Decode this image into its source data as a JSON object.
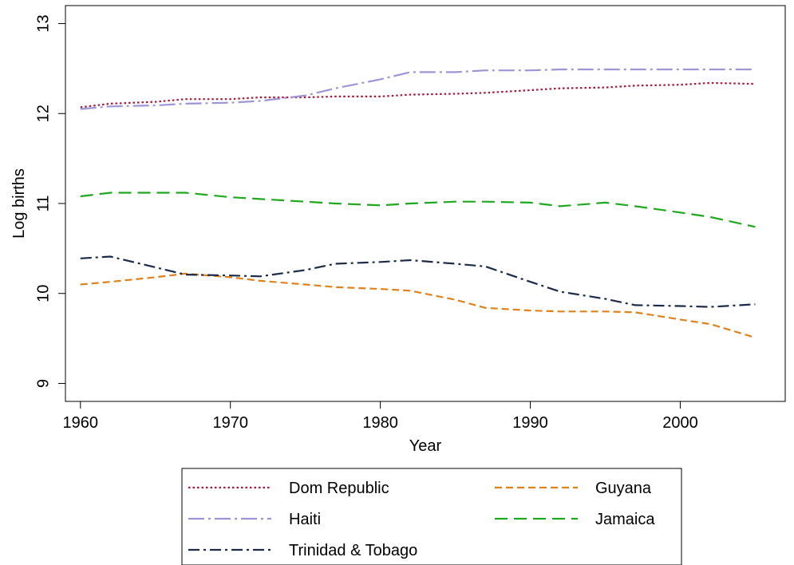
{
  "chart_data": {
    "type": "line",
    "title": "",
    "xlabel": "Year",
    "ylabel": "Log births",
    "xlim": [
      1959,
      2007
    ],
    "ylim": [
      8.8,
      13.2
    ],
    "xticks": [
      1960,
      1970,
      1980,
      1990,
      2000
    ],
    "yticks": [
      9,
      10,
      11,
      12,
      13
    ],
    "grid": false,
    "legend_position": "bottom",
    "series": [
      {
        "name": "Dom Republic",
        "color": "#a6193a",
        "dash": "dot",
        "x": [
          1960,
          1962,
          1965,
          1967,
          1970,
          1972,
          1975,
          1977,
          1980,
          1982,
          1985,
          1987,
          1990,
          1992,
          1995,
          1997,
          2000,
          2002,
          2005
        ],
        "y": [
          12.07,
          12.11,
          12.13,
          12.16,
          12.16,
          12.18,
          12.18,
          12.19,
          12.19,
          12.21,
          12.22,
          12.23,
          12.26,
          12.28,
          12.29,
          12.31,
          12.32,
          12.34,
          12.33
        ]
      },
      {
        "name": "Guyana",
        "color": "#e0811a",
        "dash": "shortdash",
        "x": [
          1960,
          1962,
          1965,
          1967,
          1970,
          1972,
          1975,
          1977,
          1980,
          1982,
          1985,
          1987,
          1990,
          1992,
          1995,
          1997,
          2000,
          2002,
          2005
        ],
        "y": [
          10.1,
          10.13,
          10.18,
          10.22,
          10.18,
          10.14,
          10.1,
          10.07,
          10.05,
          10.03,
          9.93,
          9.84,
          9.81,
          9.8,
          9.8,
          9.79,
          9.71,
          9.66,
          9.51
        ]
      },
      {
        "name": "Haiti",
        "color": "#9e95d8",
        "dash": "longdashdot",
        "x": [
          1960,
          1962,
          1965,
          1967,
          1970,
          1972,
          1975,
          1977,
          1980,
          1982,
          1985,
          1987,
          1990,
          1992,
          1995,
          1997,
          2000,
          2002,
          2005
        ],
        "y": [
          12.05,
          12.08,
          12.09,
          12.11,
          12.12,
          12.14,
          12.2,
          12.28,
          12.38,
          12.46,
          12.46,
          12.48,
          12.48,
          12.49,
          12.49,
          12.49,
          12.49,
          12.49,
          12.49
        ]
      },
      {
        "name": "Jamaica",
        "color": "#1fa81f",
        "dash": "longdash",
        "x": [
          1960,
          1962,
          1965,
          1967,
          1970,
          1972,
          1975,
          1977,
          1980,
          1982,
          1985,
          1987,
          1990,
          1992,
          1995,
          1997,
          2000,
          2002,
          2005
        ],
        "y": [
          11.08,
          11.12,
          11.12,
          11.12,
          11.07,
          11.05,
          11.02,
          11.0,
          10.98,
          11.0,
          11.02,
          11.02,
          11.01,
          10.97,
          11.01,
          10.97,
          10.9,
          10.85,
          10.74
        ]
      },
      {
        "name": "Trinidad & Tobago",
        "color": "#1b2a49",
        "dash": "dashdot",
        "x": [
          1960,
          1962,
          1965,
          1967,
          1970,
          1972,
          1975,
          1977,
          1980,
          1982,
          1985,
          1987,
          1990,
          1992,
          1995,
          1997,
          2000,
          2002,
          2005
        ],
        "y": [
          10.39,
          10.41,
          10.29,
          10.21,
          10.2,
          10.19,
          10.26,
          10.33,
          10.35,
          10.37,
          10.33,
          10.3,
          10.13,
          10.02,
          9.94,
          9.87,
          9.86,
          9.85,
          9.88
        ]
      }
    ],
    "legend_order": [
      "Dom Republic",
      "Guyana",
      "Haiti",
      "Jamaica",
      "Trinidad & Tobago"
    ]
  }
}
